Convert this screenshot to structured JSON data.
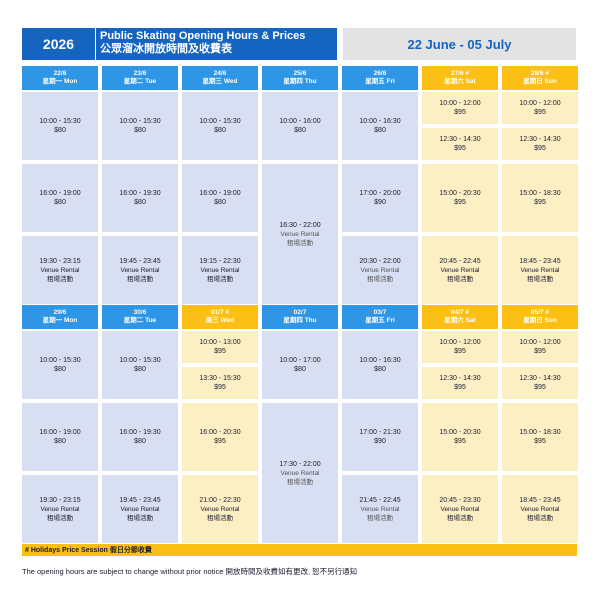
{
  "header": {
    "year": "2026",
    "title_en": "Public Skating Opening Hours & Prices",
    "title_zh": "公眾溜冰開放時間及收費表",
    "date_range": "22 June - 05 July"
  },
  "colors": {
    "header_blue": "#1565c0",
    "day_blue": "#2f96e6",
    "holiday_yellow": "#fbbf15",
    "cell_blue": "#d9dff3",
    "cell_yellow": "#fdefc4"
  },
  "weeks": [
    {
      "days": [
        {
          "date": "22/6",
          "label": "星期一 Mon",
          "holiday": false,
          "rows": [
            {
              "time": "10:00 - 15:30",
              "price": "$80"
            },
            {
              "time": "16:00 - 19:00",
              "price": "$80"
            },
            {
              "time": "19:30 - 23:15",
              "venue_en": "Venue Rental",
              "venue_zh": "租場活動"
            }
          ]
        },
        {
          "date": "23/6",
          "label": "星期二 Tue",
          "holiday": false,
          "rows": [
            {
              "time": "10:00 - 15:30",
              "price": "$80"
            },
            {
              "time": "16:00 - 19:30",
              "price": "$80"
            },
            {
              "time": "19:45 - 23:45",
              "venue_en": "Venue Rental",
              "venue_zh": "租場活動"
            }
          ]
        },
        {
          "date": "24/6",
          "label": "星期三 Wed",
          "holiday": false,
          "rows": [
            {
              "time": "10:00 - 15:30",
              "price": "$80"
            },
            {
              "time": "16:00 - 19:00",
              "price": "$80"
            },
            {
              "time": "19:15 - 22:30",
              "venue_en": "Venue Rental",
              "venue_zh": "租場活動"
            }
          ]
        },
        {
          "date": "25/6",
          "label": "星期四 Thu",
          "holiday": false,
          "rows": [
            {
              "time": "10:00 - 16:00",
              "price": "$80"
            },
            {
              "time": "16:30 - 22:00",
              "venue_en": "Venue Rental",
              "venue_zh": "租場活動"
            }
          ]
        },
        {
          "date": "26/6",
          "label": "星期五 Fri",
          "holiday": false,
          "rows": [
            {
              "time": "10:00 - 16:30",
              "price": "$80"
            },
            {
              "time": "17:00 - 20:00",
              "price": "$90"
            },
            {
              "time": "20:30 - 22:00",
              "venue_en": "Venue Rental",
              "venue_zh": "租場活動"
            }
          ]
        },
        {
          "date": "27/6 #",
          "label": "星期六 Sat",
          "holiday": true,
          "rows": [
            {
              "time": "10:00 - 12:00",
              "price": "$95"
            },
            {
              "time": "12:30 - 14:30",
              "price": "$95"
            },
            {
              "time": "15:00 - 20:30",
              "price": "$95"
            },
            {
              "time": "20:45 - 22:45",
              "venue_en": "Venue Rental",
              "venue_zh": "租場活動"
            }
          ]
        },
        {
          "date": "28/6 #",
          "label": "星期日 Sun",
          "holiday": true,
          "rows": [
            {
              "time": "10:00 - 12:00",
              "price": "$95"
            },
            {
              "time": "12:30 - 14:30",
              "price": "$95"
            },
            {
              "time": "15:00 - 18:30",
              "price": "$95"
            },
            {
              "time": "18:45 - 23:45",
              "venue_en": "Venue Rental",
              "venue_zh": "租場活動"
            }
          ]
        }
      ]
    },
    {
      "days": [
        {
          "date": "29/6",
          "label": "星期一 Mon",
          "holiday": false,
          "rows": [
            {
              "time": "10:00 - 15:30",
              "price": "$80"
            },
            {
              "time": "16:00 - 19:00",
              "price": "$80"
            },
            {
              "time": "19:30 - 23:15",
              "venue_en": "Venue Rental",
              "venue_zh": "租場活動"
            }
          ]
        },
        {
          "date": "30/6",
          "label": "星期二 Tue",
          "holiday": false,
          "rows": [
            {
              "time": "10:00 - 15:30",
              "price": "$80"
            },
            {
              "time": "16:00 - 19:30",
              "price": "$80"
            },
            {
              "time": "19:45 - 23:45",
              "venue_en": "Venue Rental",
              "venue_zh": "租場活動"
            }
          ]
        },
        {
          "date": "01/7 #",
          "label": "周三 Wed",
          "holiday": true,
          "rows": [
            {
              "time": "10:00 - 13:00",
              "price": "$95"
            },
            {
              "time": "13:30 - 15:30",
              "price": "$95"
            },
            {
              "time": "16:00 - 20:30",
              "price": "$95"
            },
            {
              "time": "21:00 - 22:30",
              "venue_en": "Venue Rental",
              "venue_zh": "租場活動"
            }
          ]
        },
        {
          "date": "02/7",
          "label": "星期四 Thu",
          "holiday": false,
          "rows": [
            {
              "time": "10:00 - 17:00",
              "price": "$80"
            },
            {
              "time": "17:30 - 22:00",
              "venue_en": "Venue Rental",
              "venue_zh": "租場活動"
            }
          ]
        },
        {
          "date": "03/7",
          "label": "星期五 Fri",
          "holiday": false,
          "rows": [
            {
              "time": "10:00 - 16:30",
              "price": "$80"
            },
            {
              "time": "17:00 - 21:30",
              "price": "$90"
            },
            {
              "time": "21:45 - 22:45",
              "venue_en": "Venue Rental",
              "venue_zh": "租場活動"
            }
          ]
        },
        {
          "date": "04/7 #",
          "label": "星期六 Sat",
          "holiday": true,
          "rows": [
            {
              "time": "10:00 - 12:00",
              "price": "$95"
            },
            {
              "time": "12:30 - 14:30",
              "price": "$95"
            },
            {
              "time": "15:00 - 20:30",
              "price": "$95"
            },
            {
              "time": "20:45 - 23:30",
              "venue_en": "Venue Rental",
              "venue_zh": "租場活動"
            }
          ]
        },
        {
          "date": "05/7 #",
          "label": "星期日 Sun",
          "holiday": true,
          "rows": [
            {
              "time": "10:00 - 12:00",
              "price": "$95"
            },
            {
              "time": "12:30 - 14:30",
              "price": "$95"
            },
            {
              "time": "15:00 - 18:30",
              "price": "$95"
            },
            {
              "time": "18:45 - 23:45",
              "venue_en": "Venue Rental",
              "venue_zh": "租場活動"
            }
          ]
        }
      ]
    }
  ],
  "footer": {
    "holiday_note": "# Holidays Price Session 假日分節收費",
    "notice": "The opening hours are subject to change without prior notice 開放時間及收費如有更改, 恕不另行通知"
  }
}
